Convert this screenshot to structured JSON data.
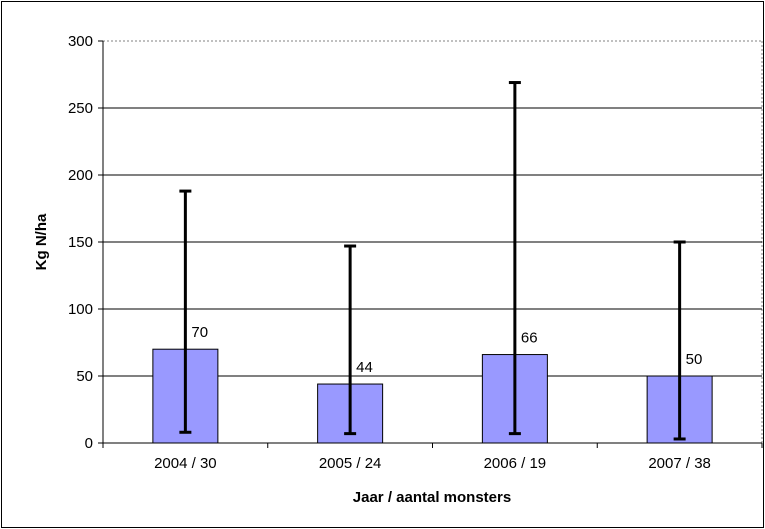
{
  "chart_data": {
    "type": "bar",
    "categories": [
      "2004 / 30",
      "2005 / 24",
      "2006 / 19",
      "2007 / 38"
    ],
    "values": [
      70,
      44,
      66,
      50
    ],
    "error_bars": [
      {
        "low": 8,
        "high": 188
      },
      {
        "low": 7,
        "high": 147
      },
      {
        "low": 7,
        "high": 269
      },
      {
        "low": 3,
        "high": 150
      }
    ],
    "data_labels": [
      "70",
      "44",
      "66",
      "50"
    ],
    "xlabel": "Jaar / aantal monsters",
    "ylabel": "Kg N/ha",
    "ylim": [
      0,
      300
    ],
    "yticks": [
      0,
      50,
      100,
      150,
      200,
      250,
      300
    ],
    "ytick_labels": [
      "0",
      "50",
      "100",
      "150",
      "200",
      "250",
      "300"
    ],
    "grid": true,
    "legend": "none",
    "colors": {
      "bar_fill": "#9999ff",
      "bar_stroke": "#000000",
      "gridline": "#000000",
      "error_bar": "#000000"
    }
  }
}
